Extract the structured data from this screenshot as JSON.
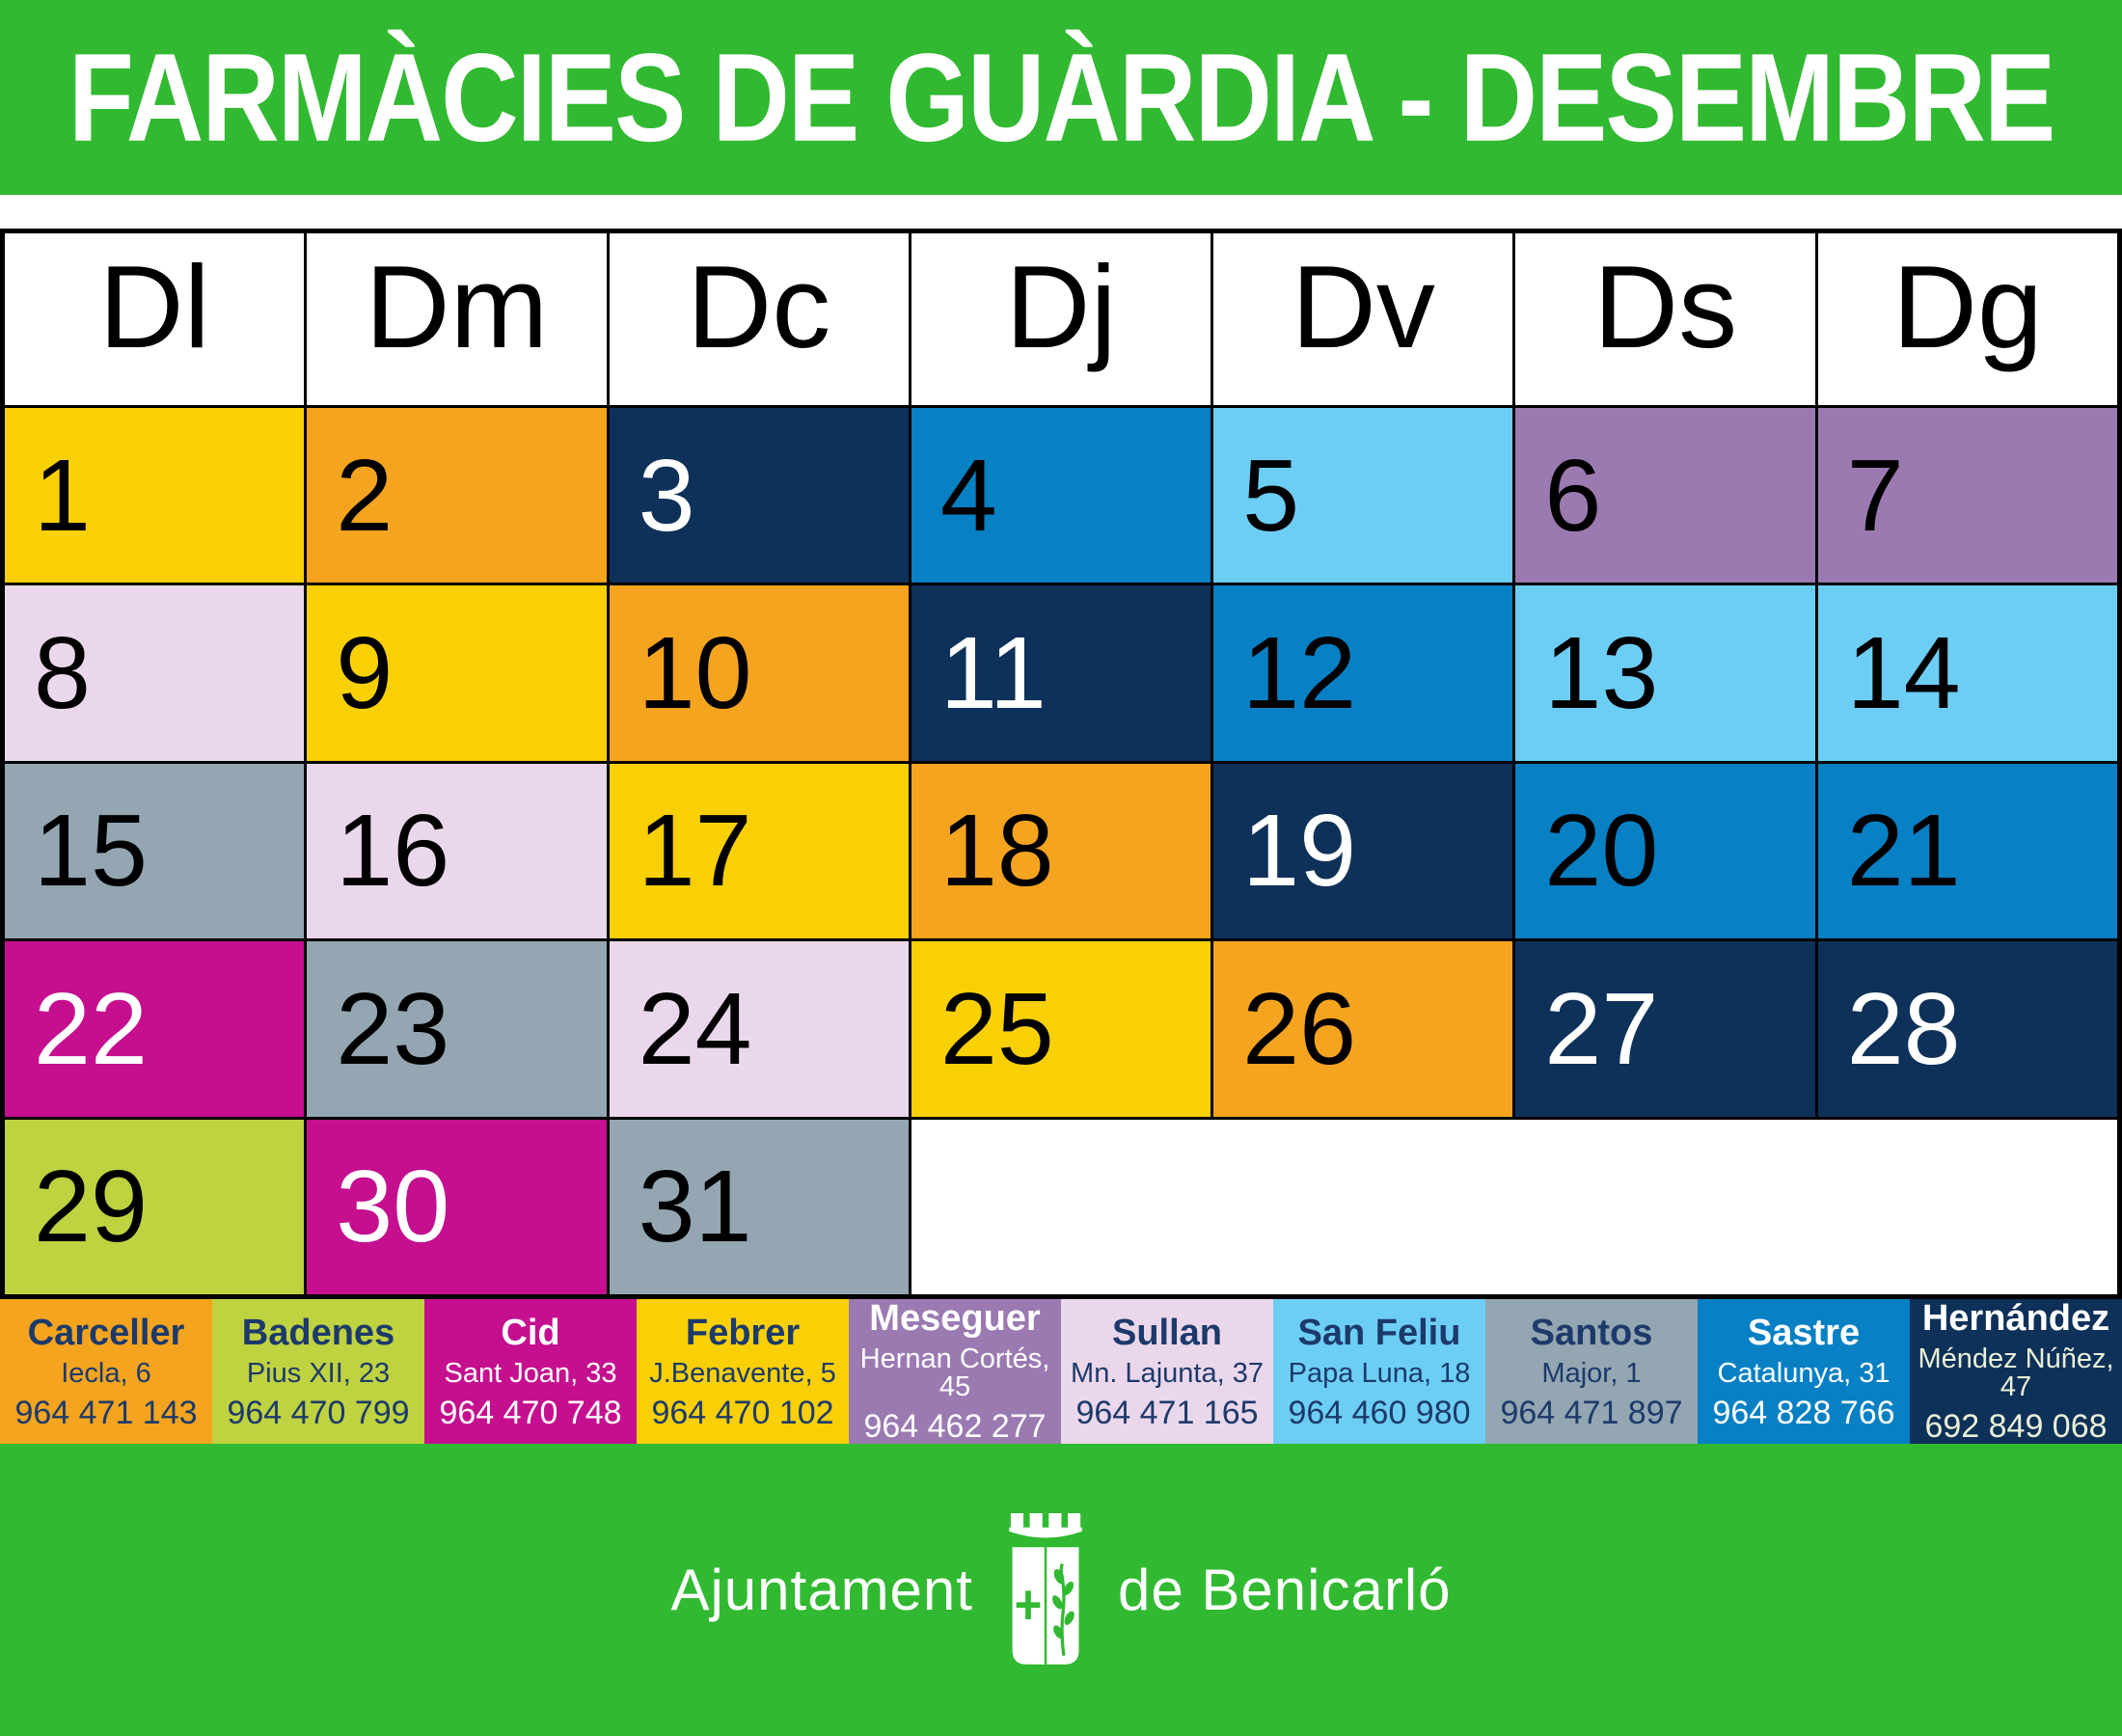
{
  "title": "FARMÀCIES DE GUÀRDIA - DESEMBRE",
  "colors": {
    "green_band": "#32B932",
    "white": "#FFFFFF",
    "black": "#000000",
    "navy_text": "#1C3A6B",
    "febrer_yellow": "#F9D006",
    "carceller_orange": "#F5A41F",
    "hernandez_navy": "#0E3159",
    "sastre_blue": "#0780C4",
    "sanfeliu_lightblue": "#6DCEF5",
    "meseguer_purple": "#9B7AB2",
    "sullan_lavender": "#EBD7EB",
    "santos_gray": "#93A6B1",
    "cid_magenta": "#C50F8F",
    "badenes_green": "#BFD240",
    "hernandez_info_text": "#E9F0D6"
  },
  "calendar": {
    "day_headers": [
      "Dl",
      "Dm",
      "Dc",
      "Dj",
      "Dv",
      "Ds",
      "Dg"
    ],
    "weeks": [
      [
        {
          "day": "1",
          "color": "febrer_yellow",
          "text": "b"
        },
        {
          "day": "2",
          "color": "carceller_orange",
          "text": "b"
        },
        {
          "day": "3",
          "color": "hernandez_navy",
          "text": "w"
        },
        {
          "day": "4",
          "color": "sastre_blue",
          "text": "b"
        },
        {
          "day": "5",
          "color": "sanfeliu_lightblue",
          "text": "b"
        },
        {
          "day": "6",
          "color": "meseguer_purple",
          "text": "b"
        },
        {
          "day": "7",
          "color": "meseguer_purple",
          "text": "b"
        }
      ],
      [
        {
          "day": "8",
          "color": "sullan_lavender",
          "text": "b"
        },
        {
          "day": "9",
          "color": "febrer_yellow",
          "text": "b"
        },
        {
          "day": "10",
          "color": "carceller_orange",
          "text": "b"
        },
        {
          "day": "11",
          "color": "hernandez_navy",
          "text": "w"
        },
        {
          "day": "12",
          "color": "sastre_blue",
          "text": "b"
        },
        {
          "day": "13",
          "color": "sanfeliu_lightblue",
          "text": "b"
        },
        {
          "day": "14",
          "color": "sanfeliu_lightblue",
          "text": "b"
        }
      ],
      [
        {
          "day": "15",
          "color": "santos_gray",
          "text": "b"
        },
        {
          "day": "16",
          "color": "sullan_lavender",
          "text": "b"
        },
        {
          "day": "17",
          "color": "febrer_yellow",
          "text": "b"
        },
        {
          "day": "18",
          "color": "carceller_orange",
          "text": "b"
        },
        {
          "day": "19",
          "color": "hernandez_navy",
          "text": "w"
        },
        {
          "day": "20",
          "color": "sastre_blue",
          "text": "b"
        },
        {
          "day": "21",
          "color": "sastre_blue",
          "text": "b"
        }
      ],
      [
        {
          "day": "22",
          "color": "cid_magenta",
          "text": "w"
        },
        {
          "day": "23",
          "color": "santos_gray",
          "text": "b"
        },
        {
          "day": "24",
          "color": "sullan_lavender",
          "text": "b"
        },
        {
          "day": "25",
          "color": "febrer_yellow",
          "text": "b"
        },
        {
          "day": "26",
          "color": "carceller_orange",
          "text": "b"
        },
        {
          "day": "27",
          "color": "hernandez_navy",
          "text": "w"
        },
        {
          "day": "28",
          "color": "hernandez_navy",
          "text": "w"
        }
      ],
      [
        {
          "day": "29",
          "color": "badenes_green",
          "text": "b"
        },
        {
          "day": "30",
          "color": "cid_magenta",
          "text": "w"
        },
        {
          "day": "31",
          "color": "santos_gray",
          "text": "b"
        },
        {
          "empty": true,
          "span": 4
        }
      ]
    ]
  },
  "legend": [
    {
      "name": "Carceller",
      "address": "Iecla, 6",
      "phone": "964 471 143",
      "bg": "carceller_orange",
      "fg": "navy_text",
      "fg2": "navy_text"
    },
    {
      "name": "Badenes",
      "address": "Pius XII, 23",
      "phone": "964 470 799",
      "bg": "badenes_green",
      "fg": "navy_text",
      "fg2": "navy_text"
    },
    {
      "name": "Cid",
      "address": "Sant Joan, 33",
      "phone": "964 470 748",
      "bg": "cid_magenta",
      "fg": "white",
      "fg2": "white"
    },
    {
      "name": "Febrer",
      "address": "J.Benavente, 5",
      "phone": "964 470 102",
      "bg": "febrer_yellow",
      "fg": "navy_text",
      "fg2": "navy_text"
    },
    {
      "name": "Meseguer",
      "address": "Hernan Cortés, 45",
      "phone": "964 462 277",
      "bg": "meseguer_purple",
      "fg": "white",
      "fg2": "white"
    },
    {
      "name": "Sullan",
      "address": "Mn. Lajunta, 37",
      "phone": "964 471 165",
      "bg": "sullan_lavender",
      "fg": "navy_text",
      "fg2": "navy_text"
    },
    {
      "name": "San Feliu",
      "address": "Papa Luna, 18",
      "phone": "964 460 980",
      "bg": "sanfeliu_lightblue",
      "fg": "navy_text",
      "fg2": "navy_text"
    },
    {
      "name": "Santos",
      "address": "Major, 1",
      "phone": "964 471 897",
      "bg": "santos_gray",
      "fg": "navy_text",
      "fg2": "navy_text"
    },
    {
      "name": "Sastre",
      "address": "Catalunya, 31",
      "phone": "964 828 766",
      "bg": "sastre_blue",
      "fg": "white",
      "fg2": "white"
    },
    {
      "name": "Hernández",
      "address": "Méndez Núñez, 47",
      "phone": "692 849 068",
      "bg": "hernandez_navy",
      "fg": "white",
      "fg2": "hernandez_info_text"
    }
  ],
  "footer": {
    "left": "Ajuntament",
    "right": "de Benicarló",
    "logo_icon": "benicarlo-city-crest"
  }
}
